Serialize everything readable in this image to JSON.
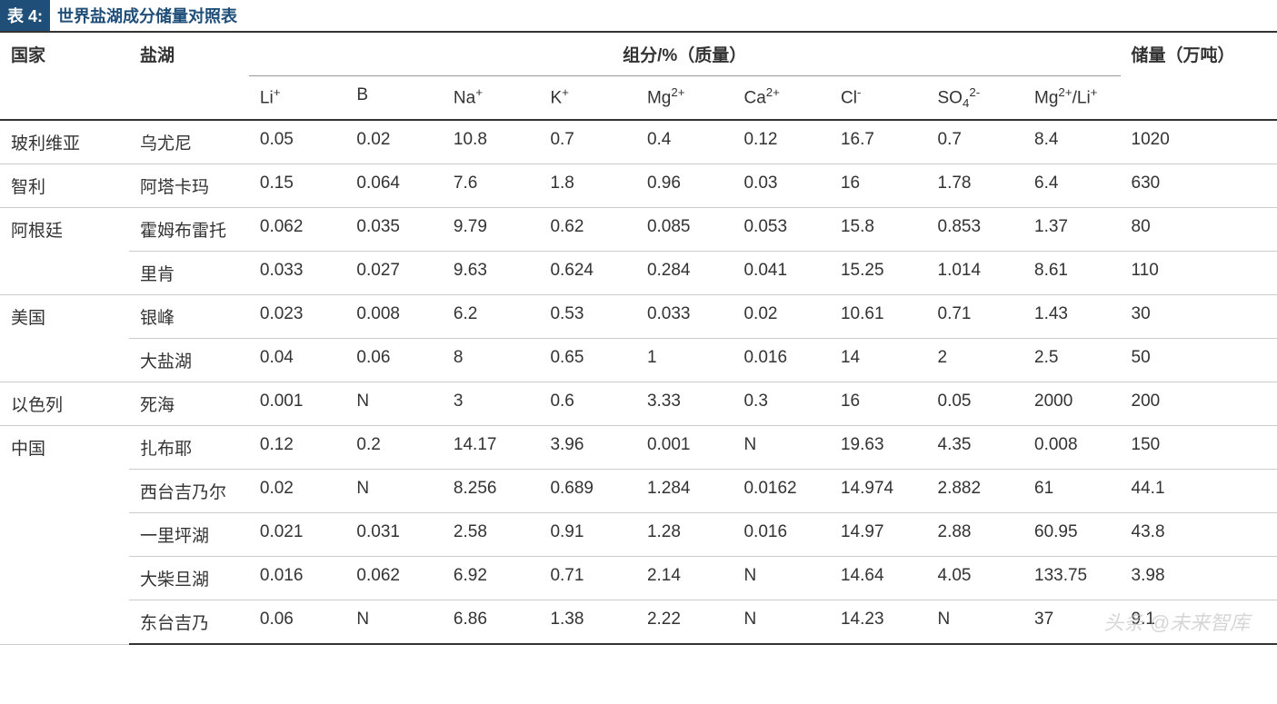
{
  "title": {
    "label": "表 4:",
    "text": "世界盐湖成分储量对照表"
  },
  "colors": {
    "header_bg": "#1f4e79",
    "header_text": "#ffffff",
    "border_heavy": "#333333",
    "border_light": "#cccccc",
    "text": "#333333",
    "watermark": "#bbbbbb"
  },
  "headers": {
    "country": "国家",
    "lake": "盐湖",
    "composition": "组分/%（质量）",
    "reserve": "储量（万吨）",
    "ions": {
      "li": "Li",
      "li_sup": "+",
      "b": "B",
      "na": "Na",
      "na_sup": "+",
      "k": "K",
      "k_sup": "+",
      "mg": "Mg",
      "mg_sup": "2+",
      "ca": "Ca",
      "ca_sup": "2+",
      "cl": "Cl",
      "cl_sup": "-",
      "so4": "SO",
      "so4_sub": "4",
      "so4_sup": "2-",
      "mgli": "Mg",
      "mgli_sup1": "2+",
      "mgli_mid": "/Li",
      "mgli_sup2": "+"
    }
  },
  "rows": [
    {
      "country": "玻利维亚",
      "lake": "乌尤尼",
      "li": "0.05",
      "b": "0.02",
      "na": "10.8",
      "k": "0.7",
      "mg": "0.4",
      "ca": "0.12",
      "cl": "16.7",
      "so4": "0.7",
      "mgli": "8.4",
      "reserve": "1020",
      "country_rowspan": 1
    },
    {
      "country": "智利",
      "lake": "阿塔卡玛",
      "li": "0.15",
      "b": "0.064",
      "na": "7.6",
      "k": "1.8",
      "mg": "0.96",
      "ca": "0.03",
      "cl": "16",
      "so4": "1.78",
      "mgli": "6.4",
      "reserve": "630",
      "country_rowspan": 1
    },
    {
      "country": "阿根廷",
      "lake": "霍姆布雷托",
      "li": "0.062",
      "b": "0.035",
      "na": "9.79",
      "k": "0.62",
      "mg": "0.085",
      "ca": "0.053",
      "cl": "15.8",
      "so4": "0.853",
      "mgli": "1.37",
      "reserve": "80",
      "country_rowspan": 2
    },
    {
      "country": "",
      "lake": "里肯",
      "li": "0.033",
      "b": "0.027",
      "na": "9.63",
      "k": "0.624",
      "mg": "0.284",
      "ca": "0.041",
      "cl": "15.25",
      "so4": "1.014",
      "mgli": "8.61",
      "reserve": "110",
      "country_rowspan": 0
    },
    {
      "country": "美国",
      "lake": "银峰",
      "li": "0.023",
      "b": "0.008",
      "na": "6.2",
      "k": "0.53",
      "mg": "0.033",
      "ca": "0.02",
      "cl": "10.61",
      "so4": "0.71",
      "mgli": "1.43",
      "reserve": "30",
      "country_rowspan": 2
    },
    {
      "country": "",
      "lake": "大盐湖",
      "li": "0.04",
      "b": "0.06",
      "na": "8",
      "k": "0.65",
      "mg": "1",
      "ca": "0.016",
      "cl": "14",
      "so4": "2",
      "mgli": "2.5",
      "reserve": "50",
      "country_rowspan": 0
    },
    {
      "country": "以色列",
      "lake": "死海",
      "li": "0.001",
      "b": "N",
      "na": "3",
      "k": "0.6",
      "mg": "3.33",
      "ca": "0.3",
      "cl": "16",
      "so4": "0.05",
      "mgli": "2000",
      "reserve": "200",
      "country_rowspan": 1
    },
    {
      "country": "中国",
      "lake": "扎布耶",
      "li": "0.12",
      "b": "0.2",
      "na": "14.17",
      "k": "3.96",
      "mg": "0.001",
      "ca": "N",
      "cl": "19.63",
      "so4": "4.35",
      "mgli": "0.008",
      "reserve": "150",
      "country_rowspan": 5
    },
    {
      "country": "",
      "lake": "西台吉乃尔",
      "li": "0.02",
      "b": "N",
      "na": "8.256",
      "k": "0.689",
      "mg": "1.284",
      "ca": "0.0162",
      "cl": "14.974",
      "so4": "2.882",
      "mgli": "61",
      "reserve": "44.1",
      "country_rowspan": 0
    },
    {
      "country": "",
      "lake": "一里坪湖",
      "li": "0.021",
      "b": "0.031",
      "na": "2.58",
      "k": "0.91",
      "mg": "1.28",
      "ca": "0.016",
      "cl": "14.97",
      "so4": "2.88",
      "mgli": "60.95",
      "reserve": "43.8",
      "country_rowspan": 0
    },
    {
      "country": "",
      "lake": "大柴旦湖",
      "li": "0.016",
      "b": "0.062",
      "na": "6.92",
      "k": "0.71",
      "mg": "2.14",
      "ca": "N",
      "cl": "14.64",
      "so4": "4.05",
      "mgli": "133.75",
      "reserve": "3.98",
      "country_rowspan": 0
    },
    {
      "country": "",
      "lake": "东台吉乃",
      "li": "0.06",
      "b": "N",
      "na": "6.86",
      "k": "1.38",
      "mg": "2.22",
      "ca": "N",
      "cl": "14.23",
      "so4": "N",
      "mgli": "37",
      "reserve": "9.1",
      "country_rowspan": 0
    }
  ],
  "watermark": "头条 @未来智库"
}
